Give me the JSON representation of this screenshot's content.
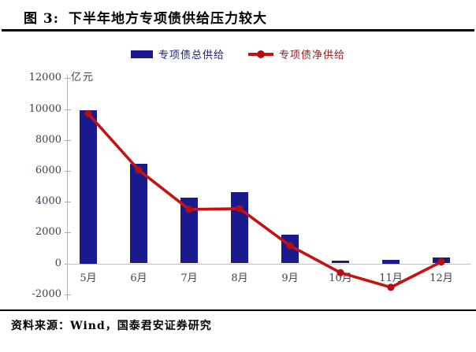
{
  "figure": {
    "label": "图 3:",
    "title": "下半年地方专项债供给压力较大"
  },
  "legend": {
    "items": [
      {
        "label": "专项债总供给",
        "type": "bar",
        "color": "#1a1a8f",
        "text_color": "#1a1a8f"
      },
      {
        "label": "专项债净供给",
        "type": "line",
        "color": "#c81111",
        "text_color": "#8f1d1d"
      }
    ]
  },
  "chart_data": {
    "type": "bar",
    "categories": [
      "5月",
      "6月",
      "7月",
      "8月",
      "9月",
      "10月",
      "11月",
      "12月"
    ],
    "series": [
      {
        "name": "专项债总供给",
        "type": "bar",
        "color": "#1a1a8f",
        "values": [
          9950,
          6450,
          4250,
          4600,
          1850,
          200,
          230,
          360
        ]
      },
      {
        "name": "专项债净供给",
        "type": "line",
        "color": "#c81111",
        "marker_color": "#b50f0f",
        "values": [
          9700,
          6050,
          3500,
          3550,
          1150,
          -600,
          -1550,
          100
        ]
      }
    ],
    "unit": "亿元",
    "ylim": [
      -2000,
      12000
    ],
    "yticks": [
      12000,
      10000,
      8000,
      6000,
      4000,
      2000,
      0,
      -2000
    ],
    "grid": "zero-line-only",
    "legend_position": "top"
  },
  "footer": {
    "source": "资料来源：Wind，国泰君安证券研究"
  }
}
